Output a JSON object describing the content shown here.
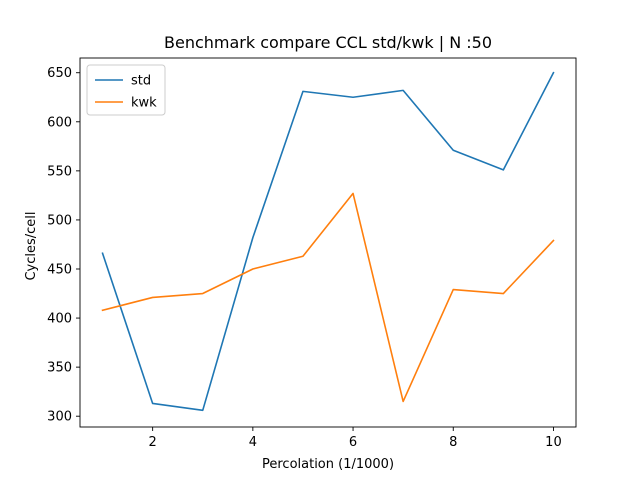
{
  "chart_data": {
    "type": "line",
    "title": "Benchmark compare CCL std/kwk | N :50",
    "xlabel": "Percolation (1/1000)",
    "ylabel": "Cycles/cell",
    "x": [
      1,
      2,
      3,
      4,
      5,
      6,
      7,
      8,
      9,
      10
    ],
    "xlim": [
      0.55,
      10.45
    ],
    "ylim": [
      289,
      665
    ],
    "xticks": [
      2,
      4,
      6,
      8,
      10
    ],
    "yticks": [
      300,
      350,
      400,
      450,
      500,
      550,
      600,
      650
    ],
    "grid": false,
    "legend": "top-left",
    "series": [
      {
        "name": "std",
        "color": "#1f77b4",
        "values": [
          466,
          313,
          306,
          482,
          631,
          625,
          632,
          571,
          551,
          650
        ]
      },
      {
        "name": "kwk",
        "color": "#ff7f0e",
        "values": [
          408,
          421,
          425,
          450,
          463,
          527,
          315,
          429,
          425,
          479
        ]
      }
    ]
  }
}
